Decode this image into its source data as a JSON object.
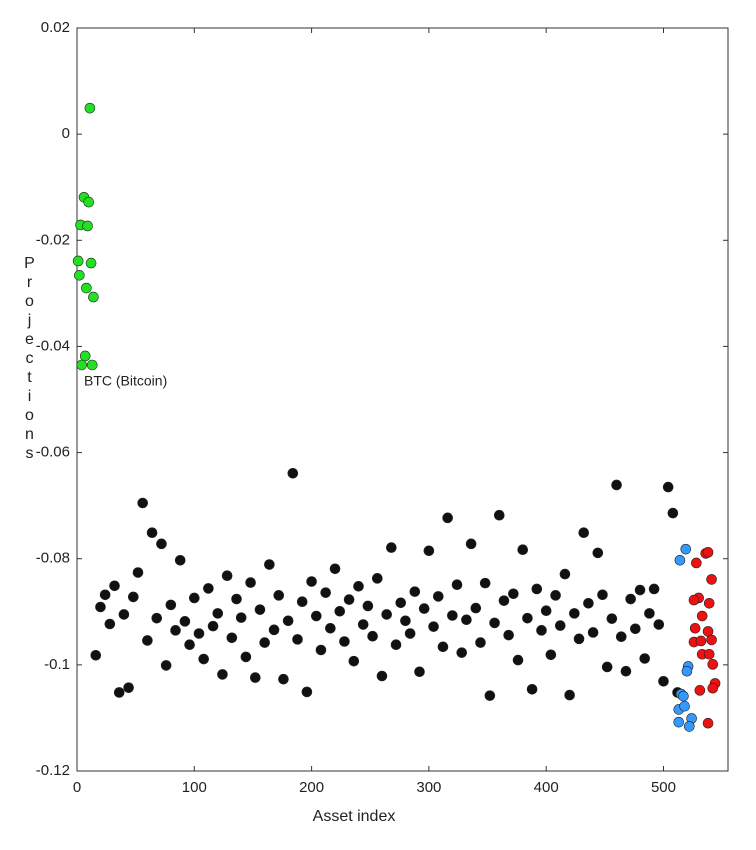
{
  "chart_data": {
    "type": "scatter",
    "xlabel": "Asset index",
    "ylabel": "Projections",
    "annotation": "BTC (Bitcoin)",
    "xlim": [
      0,
      555
    ],
    "xticks": [
      0,
      100,
      200,
      300,
      400,
      500
    ],
    "ylim": [
      -0.12,
      0.02
    ],
    "yticks": [
      0.02,
      0,
      -0.02,
      -0.04,
      -0.06,
      -0.08,
      -0.1,
      -0.12
    ],
    "series": [
      {
        "color": "#111111",
        "x": [
          16,
          20,
          24,
          28,
          32,
          36,
          40,
          44,
          48,
          52,
          56,
          60,
          64,
          68,
          72,
          76,
          80,
          84,
          88,
          92,
          96,
          100,
          104,
          108,
          112,
          116,
          120,
          124,
          128,
          132,
          136,
          140,
          144,
          148,
          152,
          156,
          160,
          164,
          168,
          172,
          176,
          180,
          184,
          188,
          192,
          196,
          200,
          204,
          208,
          212,
          216,
          220,
          224,
          228,
          232,
          236,
          240,
          244,
          248,
          252,
          256,
          260,
          264,
          268,
          272,
          276,
          280,
          284,
          288,
          292,
          296,
          300,
          304,
          308,
          312,
          316,
          320,
          324,
          328,
          332,
          336,
          340,
          344,
          348,
          352,
          356,
          360,
          364,
          368,
          372,
          376,
          380,
          384,
          388,
          392,
          396,
          400,
          404,
          408,
          412,
          416,
          420,
          424,
          428,
          432,
          436,
          440,
          444,
          448,
          452,
          456,
          460,
          464,
          468,
          472,
          476,
          480,
          484,
          488,
          492,
          496,
          500,
          504,
          508,
          512
        ],
        "values": [
          -0.0982,
          -0.0891,
          -0.0868,
          -0.0923,
          -0.0851,
          -0.1052,
          -0.0905,
          -0.1043,
          -0.0872,
          -0.0826,
          -0.0695,
          -0.0954,
          -0.0751,
          -0.0912,
          -0.0772,
          -0.1001,
          -0.0887,
          -0.0935,
          -0.0803,
          -0.0918,
          -0.0962,
          -0.0874,
          -0.0941,
          -0.0989,
          -0.0856,
          -0.0927,
          -0.0903,
          -0.1018,
          -0.0832,
          -0.0949,
          -0.0876,
          -0.0911,
          -0.0985,
          -0.0845,
          -0.1024,
          -0.0896,
          -0.0958,
          -0.0811,
          -0.0934,
          -0.0869,
          -0.1027,
          -0.0917,
          -0.0639,
          -0.0952,
          -0.0881,
          -0.1051,
          -0.0843,
          -0.0908,
          -0.0972,
          -0.0864,
          -0.0931,
          -0.0819,
          -0.0899,
          -0.0956,
          -0.0877,
          -0.0993,
          -0.0852,
          -0.0924,
          -0.0889,
          -0.0946,
          -0.0837,
          -0.1021,
          -0.0905,
          -0.0779,
          -0.0962,
          -0.0883,
          -0.0917,
          -0.0941,
          -0.0862,
          -0.1013,
          -0.0894,
          -0.0785,
          -0.0928,
          -0.0871,
          -0.0966,
          -0.0723,
          -0.0907,
          -0.0849,
          -0.0977,
          -0.0915,
          -0.0772,
          -0.0893,
          -0.0958,
          -0.0846,
          -0.1058,
          -0.0921,
          -0.0718,
          -0.0879,
          -0.0944,
          -0.0866,
          -0.0991,
          -0.0783,
          -0.0912,
          -0.1046,
          -0.0857,
          -0.0935,
          -0.0898,
          -0.0981,
          -0.0869,
          -0.0926,
          -0.0829,
          -0.1057,
          -0.0903,
          -0.0951,
          -0.0751,
          -0.0884,
          -0.0939,
          -0.0789,
          -0.0868,
          -0.1004,
          -0.0913,
          -0.0661,
          -0.0947,
          -0.1012,
          -0.0876,
          -0.0932,
          -0.0859,
          -0.0988,
          -0.0903,
          -0.0857,
          -0.0924,
          -0.1031,
          -0.0665,
          -0.0714,
          -0.1052
        ]
      },
      {
        "color": "#22e022",
        "x": [
          11,
          6,
          10,
          3,
          9,
          1,
          12,
          2,
          8,
          14,
          7,
          4,
          13
        ],
        "values": [
          0.0049,
          -0.0119,
          -0.0128,
          -0.0171,
          -0.0173,
          -0.0239,
          -0.0243,
          -0.0266,
          -0.029,
          -0.0307,
          -0.0418,
          -0.0435,
          -0.0435
        ]
      },
      {
        "color": "#3399ff",
        "x": [
          519,
          514,
          521,
          520,
          515,
          517,
          513,
          518,
          513,
          524,
          522
        ],
        "values": [
          -0.0782,
          -0.0803,
          -0.1003,
          -0.1012,
          -0.1055,
          -0.1059,
          -0.1084,
          -0.1078,
          -0.1108,
          -0.1101,
          -0.1116
        ]
      },
      {
        "color": "#ee1111",
        "x": [
          536,
          538,
          528,
          541,
          530,
          526,
          539,
          533,
          527,
          538,
          526,
          532,
          541,
          533,
          539,
          542,
          544,
          542,
          531,
          538
        ],
        "values": [
          -0.079,
          -0.0788,
          -0.0808,
          -0.0839,
          -0.0874,
          -0.0878,
          -0.0884,
          -0.0908,
          -0.0931,
          -0.0937,
          -0.0957,
          -0.0955,
          -0.0953,
          -0.098,
          -0.098,
          -0.0999,
          -0.1035,
          -0.1044,
          -0.1048,
          -0.111
        ]
      }
    ]
  }
}
